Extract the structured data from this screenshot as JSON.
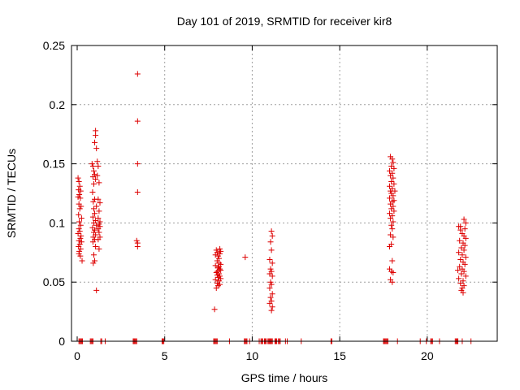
{
  "chart_data": {
    "type": "scatter",
    "title": "Day 101 of 2019, SRMTID for receiver kir8",
    "xlabel": "GPS time / hours",
    "ylabel": "SRMTID / TECUs",
    "xlim": [
      0,
      24
    ],
    "ylim": [
      0,
      0.25
    ],
    "xticks": [
      0,
      5,
      10,
      15,
      20
    ],
    "yticks": [
      0,
      0.05,
      0.1,
      0.15,
      0.2,
      0.25
    ],
    "xtick_labels": [
      "0",
      "5",
      "10",
      "15",
      "20"
    ],
    "ytick_labels": [
      "0",
      "0.05",
      "0.1",
      "0.15",
      "0.2",
      "0.25"
    ],
    "grid": true,
    "marker": "+",
    "color": "#dd0000",
    "series": [
      {
        "name": "SRMTID",
        "points": [
          [
            0.05,
            0.138
          ],
          [
            0.1,
            0.135
          ],
          [
            0.15,
            0.131
          ],
          [
            0.08,
            0.128
          ],
          [
            0.2,
            0.127
          ],
          [
            0.12,
            0.124
          ],
          [
            0.05,
            0.122
          ],
          [
            0.18,
            0.121
          ],
          [
            0.1,
            0.116
          ],
          [
            0.22,
            0.114
          ],
          [
            0.15,
            0.112
          ],
          [
            0.08,
            0.107
          ],
          [
            0.25,
            0.104
          ],
          [
            0.12,
            0.101
          ],
          [
            0.2,
            0.098
          ],
          [
            0.1,
            0.095
          ],
          [
            0.15,
            0.093
          ],
          [
            0.05,
            0.091
          ],
          [
            0.22,
            0.089
          ],
          [
            0.18,
            0.087
          ],
          [
            0.1,
            0.085
          ],
          [
            0.25,
            0.084
          ],
          [
            0.15,
            0.082
          ],
          [
            0.08,
            0.08
          ],
          [
            0.2,
            0.078
          ],
          [
            0.12,
            0.076
          ],
          [
            0.1,
            0.074
          ],
          [
            0.18,
            0.072
          ],
          [
            0.28,
            0.068
          ],
          [
            0.85,
            0.15
          ],
          [
            0.9,
            0.148
          ],
          [
            0.95,
            0.144
          ],
          [
            1.0,
            0.141
          ],
          [
            0.9,
            0.139
          ],
          [
            1.05,
            0.137
          ],
          [
            0.95,
            0.133
          ],
          [
            0.88,
            0.126
          ],
          [
            1.0,
            0.12
          ],
          [
            0.92,
            0.118
          ],
          [
            1.1,
            0.114
          ],
          [
            0.95,
            0.112
          ],
          [
            1.0,
            0.108
          ],
          [
            0.9,
            0.105
          ],
          [
            1.05,
            0.102
          ],
          [
            0.95,
            0.1
          ],
          [
            1.1,
            0.098
          ],
          [
            0.88,
            0.096
          ],
          [
            1.0,
            0.094
          ],
          [
            0.95,
            0.092
          ],
          [
            1.05,
            0.09
          ],
          [
            0.92,
            0.088
          ],
          [
            1.0,
            0.086
          ],
          [
            0.9,
            0.084
          ],
          [
            1.05,
            0.08
          ],
          [
            0.95,
            0.073
          ],
          [
            1.0,
            0.068
          ],
          [
            0.92,
            0.066
          ],
          [
            1.1,
            0.043
          ],
          [
            1.05,
            0.178
          ],
          [
            1.05,
            0.174
          ],
          [
            1.0,
            0.168
          ],
          [
            1.1,
            0.163
          ],
          [
            1.15,
            0.152
          ],
          [
            1.2,
            0.148
          ],
          [
            1.15,
            0.14
          ],
          [
            1.25,
            0.134
          ],
          [
            1.2,
            0.12
          ],
          [
            1.3,
            0.117
          ],
          [
            1.25,
            0.11
          ],
          [
            1.2,
            0.104
          ],
          [
            1.3,
            0.101
          ],
          [
            1.25,
            0.099
          ],
          [
            1.3,
            0.097
          ],
          [
            1.2,
            0.095
          ],
          [
            1.25,
            0.092
          ],
          [
            1.3,
            0.088
          ],
          [
            1.2,
            0.086
          ],
          [
            1.25,
            0.078
          ],
          [
            3.45,
            0.226
          ],
          [
            3.45,
            0.186
          ],
          [
            3.45,
            0.15
          ],
          [
            3.45,
            0.126
          ],
          [
            3.4,
            0.085
          ],
          [
            3.45,
            0.083
          ],
          [
            3.45,
            0.08
          ],
          [
            7.95,
            0.077
          ],
          [
            8.0,
            0.075
          ],
          [
            8.05,
            0.072
          ],
          [
            8.1,
            0.07
          ],
          [
            8.15,
            0.078
          ],
          [
            8.2,
            0.076
          ],
          [
            8.0,
            0.068
          ],
          [
            8.1,
            0.066
          ],
          [
            7.9,
            0.064
          ],
          [
            8.05,
            0.062
          ],
          [
            8.15,
            0.061
          ],
          [
            8.2,
            0.06
          ],
          [
            7.95,
            0.058
          ],
          [
            8.1,
            0.057
          ],
          [
            8.0,
            0.056
          ],
          [
            8.15,
            0.055
          ],
          [
            8.05,
            0.054
          ],
          [
            8.2,
            0.053
          ],
          [
            7.9,
            0.052
          ],
          [
            8.1,
            0.051
          ],
          [
            8.0,
            0.049
          ],
          [
            8.15,
            0.048
          ],
          [
            8.05,
            0.047
          ],
          [
            7.95,
            0.045
          ],
          [
            8.2,
            0.065
          ],
          [
            8.1,
            0.063
          ],
          [
            8.0,
            0.059
          ],
          [
            7.9,
            0.073
          ],
          [
            8.15,
            0.074
          ],
          [
            7.85,
            0.027
          ],
          [
            9.6,
            0.071
          ],
          [
            11.1,
            0.093
          ],
          [
            11.15,
            0.089
          ],
          [
            11.05,
            0.084
          ],
          [
            11.1,
            0.077
          ],
          [
            11.0,
            0.069
          ],
          [
            11.15,
            0.066
          ],
          [
            11.05,
            0.061
          ],
          [
            11.1,
            0.059
          ],
          [
            11.0,
            0.057
          ],
          [
            11.15,
            0.055
          ],
          [
            11.05,
            0.05
          ],
          [
            11.1,
            0.048
          ],
          [
            11.0,
            0.045
          ],
          [
            11.15,
            0.04
          ],
          [
            11.05,
            0.037
          ],
          [
            11.1,
            0.034
          ],
          [
            11.0,
            0.032
          ],
          [
            11.15,
            0.029
          ],
          [
            11.1,
            0.026
          ],
          [
            17.9,
            0.156
          ],
          [
            18.0,
            0.154
          ],
          [
            18.05,
            0.151
          ],
          [
            17.95,
            0.148
          ],
          [
            18.1,
            0.146
          ],
          [
            17.85,
            0.144
          ],
          [
            18.0,
            0.142
          ],
          [
            17.9,
            0.14
          ],
          [
            18.05,
            0.138
          ],
          [
            17.95,
            0.135
          ],
          [
            18.1,
            0.133
          ],
          [
            17.85,
            0.131
          ],
          [
            18.0,
            0.129
          ],
          [
            17.9,
            0.127
          ],
          [
            18.15,
            0.127
          ],
          [
            17.95,
            0.125
          ],
          [
            18.05,
            0.123
          ],
          [
            17.85,
            0.121
          ],
          [
            18.1,
            0.119
          ],
          [
            18.0,
            0.118
          ],
          [
            17.9,
            0.116
          ],
          [
            18.05,
            0.114
          ],
          [
            17.95,
            0.112
          ],
          [
            18.1,
            0.11
          ],
          [
            17.85,
            0.108
          ],
          [
            18.0,
            0.106
          ],
          [
            17.9,
            0.104
          ],
          [
            18.05,
            0.101
          ],
          [
            17.95,
            0.098
          ],
          [
            18.0,
            0.095
          ],
          [
            17.9,
            0.09
          ],
          [
            18.05,
            0.088
          ],
          [
            17.95,
            0.082
          ],
          [
            17.85,
            0.08
          ],
          [
            18.0,
            0.068
          ],
          [
            17.85,
            0.061
          ],
          [
            17.95,
            0.059
          ],
          [
            18.05,
            0.058
          ],
          [
            17.9,
            0.052
          ],
          [
            18.0,
            0.05
          ],
          [
            21.8,
            0.097
          ],
          [
            21.9,
            0.094
          ],
          [
            22.0,
            0.091
          ],
          [
            22.1,
            0.089
          ],
          [
            22.2,
            0.087
          ],
          [
            21.85,
            0.085
          ],
          [
            22.05,
            0.083
          ],
          [
            22.15,
            0.081
          ],
          [
            21.95,
            0.079
          ],
          [
            22.1,
            0.077
          ],
          [
            21.8,
            0.075
          ],
          [
            22.0,
            0.073
          ],
          [
            22.2,
            0.071
          ],
          [
            21.9,
            0.069
          ],
          [
            22.05,
            0.067
          ],
          [
            22.15,
            0.065
          ],
          [
            21.85,
            0.063
          ],
          [
            22.0,
            0.061
          ],
          [
            22.1,
            0.059
          ],
          [
            21.95,
            0.057
          ],
          [
            22.2,
            0.055
          ],
          [
            21.8,
            0.053
          ],
          [
            22.05,
            0.051
          ],
          [
            21.9,
            0.049
          ],
          [
            22.1,
            0.047
          ],
          [
            22.0,
            0.045
          ],
          [
            21.95,
            0.043
          ],
          [
            22.05,
            0.041
          ],
          [
            22.1,
            0.103
          ],
          [
            22.2,
            0.1
          ],
          [
            21.9,
            0.097
          ],
          [
            22.15,
            0.095
          ],
          [
            21.75,
            0.06
          ]
        ]
      }
    ],
    "baseline_times": [
      0.1,
      0.15,
      0.2,
      0.25,
      0.3,
      0.75,
      0.8,
      0.85,
      0.9,
      1.35,
      1.4,
      1.6,
      3.2,
      3.25,
      3.3,
      3.35,
      3.4,
      4.85,
      4.9,
      4.95,
      7.8,
      7.85,
      7.9,
      7.95,
      8.0,
      8.7,
      9.55,
      9.6,
      9.65,
      9.7,
      9.85,
      10.4,
      10.5,
      10.55,
      10.6,
      10.7,
      10.75,
      10.8,
      10.9,
      10.95,
      11.0,
      11.05,
      11.1,
      11.15,
      11.3,
      11.35,
      11.4,
      11.5,
      11.55,
      11.6,
      11.9,
      12.0,
      12.8,
      14.5,
      14.55,
      17.5,
      17.55,
      17.6,
      17.65,
      17.7,
      17.75,
      18.3,
      19.6,
      19.95,
      20.2,
      20.25,
      20.3,
      20.7,
      21.6,
      21.65,
      21.7,
      21.75,
      22.0,
      22.5
    ]
  }
}
